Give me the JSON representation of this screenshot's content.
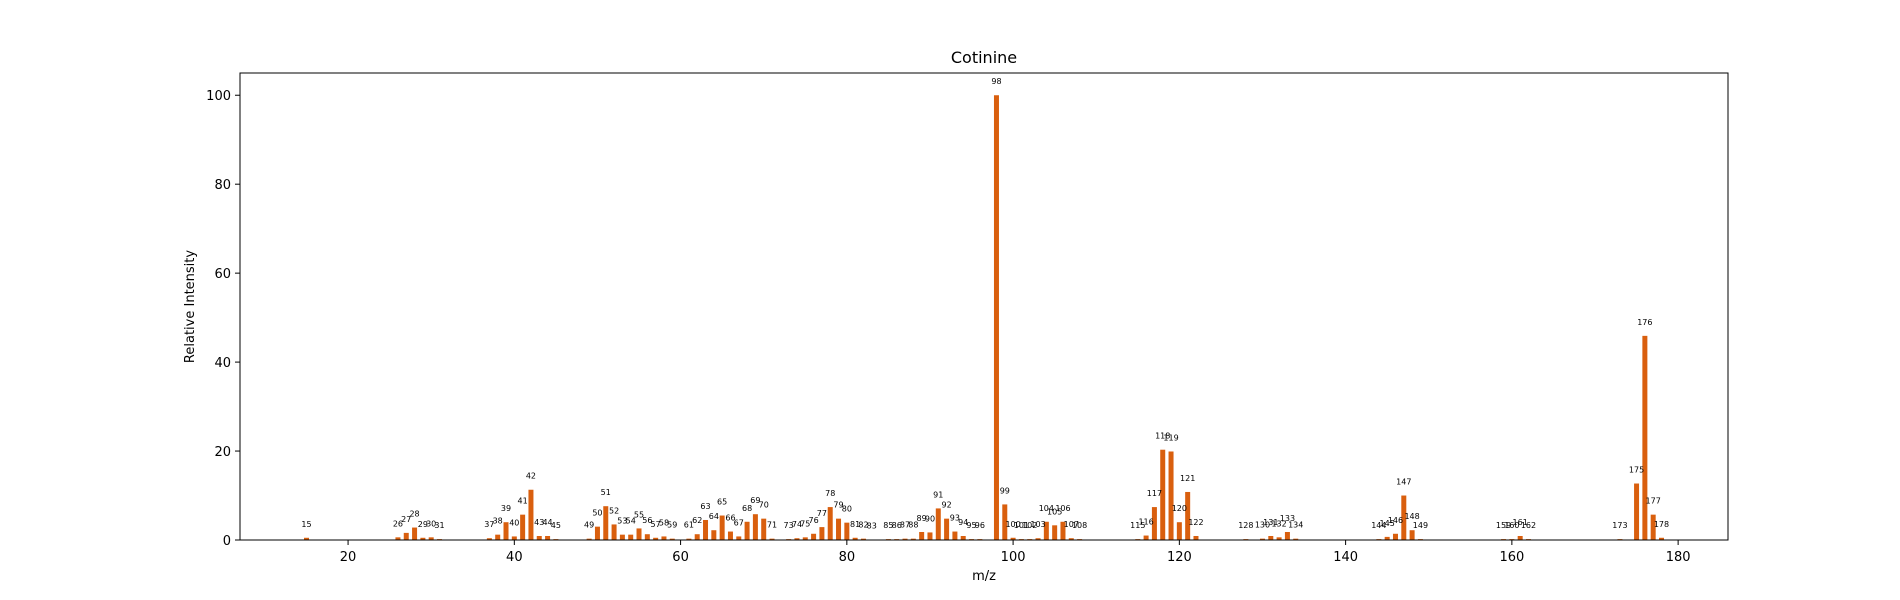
{
  "chart_data": {
    "type": "bar",
    "title": "Cotinine",
    "xlabel": "m/z",
    "ylabel": "Relative Intensity",
    "xlim": [
      7,
      186
    ],
    "ylim": [
      0,
      105
    ],
    "xticks": [
      20,
      40,
      60,
      80,
      100,
      120,
      140,
      160,
      180
    ],
    "yticks": [
      0,
      20,
      40,
      60,
      80,
      100
    ],
    "grid": false,
    "bar_color": "#d95f0e",
    "peaks": [
      {
        "mz": 15,
        "intensity": 0.5,
        "label": "15"
      },
      {
        "mz": 26,
        "intensity": 0.6,
        "label": "26"
      },
      {
        "mz": 27,
        "intensity": 1.6,
        "label": "27"
      },
      {
        "mz": 28,
        "intensity": 2.8,
        "label": "28"
      },
      {
        "mz": 29,
        "intensity": 0.5,
        "label": "29"
      },
      {
        "mz": 30,
        "intensity": 0.6,
        "label": "30"
      },
      {
        "mz": 31,
        "intensity": 0.2,
        "label": "31"
      },
      {
        "mz": 37,
        "intensity": 0.4,
        "label": "37"
      },
      {
        "mz": 38,
        "intensity": 1.2,
        "label": "38"
      },
      {
        "mz": 39,
        "intensity": 4.0,
        "label": "39"
      },
      {
        "mz": 40,
        "intensity": 0.8,
        "label": "40"
      },
      {
        "mz": 41,
        "intensity": 5.7,
        "label": "41"
      },
      {
        "mz": 42,
        "intensity": 11.3,
        "label": "42"
      },
      {
        "mz": 43,
        "intensity": 0.9,
        "label": "43"
      },
      {
        "mz": 44,
        "intensity": 0.9,
        "label": "44"
      },
      {
        "mz": 45,
        "intensity": 0.2,
        "label": "45"
      },
      {
        "mz": 49,
        "intensity": 0.3,
        "label": "49"
      },
      {
        "mz": 50,
        "intensity": 3.0,
        "label": "50"
      },
      {
        "mz": 51,
        "intensity": 7.6,
        "label": "51"
      },
      {
        "mz": 52,
        "intensity": 3.5,
        "label": "52"
      },
      {
        "mz": 53,
        "intensity": 1.2,
        "label": "53"
      },
      {
        "mz": 54,
        "intensity": 1.2,
        "label": "54"
      },
      {
        "mz": 55,
        "intensity": 2.6,
        "label": "55"
      },
      {
        "mz": 56,
        "intensity": 1.3,
        "label": "56"
      },
      {
        "mz": 57,
        "intensity": 0.5,
        "label": "57"
      },
      {
        "mz": 58,
        "intensity": 0.8,
        "label": "58"
      },
      {
        "mz": 59,
        "intensity": 0.3,
        "label": "59"
      },
      {
        "mz": 61,
        "intensity": 0.3,
        "label": "61"
      },
      {
        "mz": 62,
        "intensity": 1.3,
        "label": "62"
      },
      {
        "mz": 63,
        "intensity": 4.5,
        "label": "63"
      },
      {
        "mz": 64,
        "intensity": 2.2,
        "label": "64"
      },
      {
        "mz": 65,
        "intensity": 5.5,
        "label": "65"
      },
      {
        "mz": 66,
        "intensity": 1.9,
        "label": "66"
      },
      {
        "mz": 67,
        "intensity": 0.8,
        "label": "67"
      },
      {
        "mz": 68,
        "intensity": 4.1,
        "label": "68"
      },
      {
        "mz": 69,
        "intensity": 5.8,
        "label": "69"
      },
      {
        "mz": 70,
        "intensity": 4.8,
        "label": "70"
      },
      {
        "mz": 71,
        "intensity": 0.3,
        "label": "71"
      },
      {
        "mz": 73,
        "intensity": 0.2,
        "label": "73"
      },
      {
        "mz": 74,
        "intensity": 0.4,
        "label": "74"
      },
      {
        "mz": 75,
        "intensity": 0.6,
        "label": "75"
      },
      {
        "mz": 76,
        "intensity": 1.4,
        "label": "76"
      },
      {
        "mz": 77,
        "intensity": 2.9,
        "label": "77"
      },
      {
        "mz": 78,
        "intensity": 7.4,
        "label": "78"
      },
      {
        "mz": 79,
        "intensity": 4.8,
        "label": "79"
      },
      {
        "mz": 80,
        "intensity": 3.9,
        "label": "80"
      },
      {
        "mz": 81,
        "intensity": 0.5,
        "label": "81"
      },
      {
        "mz": 82,
        "intensity": 0.3,
        "label": "82"
      },
      {
        "mz": 83,
        "intensity": 0.1,
        "label": "83"
      },
      {
        "mz": 85,
        "intensity": 0.2,
        "label": "85"
      },
      {
        "mz": 86,
        "intensity": 0.2,
        "label": "86"
      },
      {
        "mz": 87,
        "intensity": 0.3,
        "label": "87"
      },
      {
        "mz": 88,
        "intensity": 0.3,
        "label": "88"
      },
      {
        "mz": 89,
        "intensity": 1.8,
        "label": "89"
      },
      {
        "mz": 90,
        "intensity": 1.7,
        "label": "90"
      },
      {
        "mz": 91,
        "intensity": 7.1,
        "label": "91"
      },
      {
        "mz": 92,
        "intensity": 4.8,
        "label": "92"
      },
      {
        "mz": 93,
        "intensity": 1.9,
        "label": "93"
      },
      {
        "mz": 94,
        "intensity": 0.9,
        "label": "94"
      },
      {
        "mz": 95,
        "intensity": 0.2,
        "label": "95"
      },
      {
        "mz": 96,
        "intensity": 0.2,
        "label": "96"
      },
      {
        "mz": 98,
        "intensity": 100.0,
        "label": "98"
      },
      {
        "mz": 99,
        "intensity": 8.0,
        "label": "99"
      },
      {
        "mz": 100,
        "intensity": 0.5,
        "label": "100"
      },
      {
        "mz": 101,
        "intensity": 0.2,
        "label": "101"
      },
      {
        "mz": 102,
        "intensity": 0.2,
        "label": "102"
      },
      {
        "mz": 103,
        "intensity": 0.4,
        "label": "103"
      },
      {
        "mz": 104,
        "intensity": 4.1,
        "label": "104"
      },
      {
        "mz": 105,
        "intensity": 3.3,
        "label": "105"
      },
      {
        "mz": 106,
        "intensity": 4.1,
        "label": "106"
      },
      {
        "mz": 107,
        "intensity": 0.4,
        "label": "107"
      },
      {
        "mz": 108,
        "intensity": 0.2,
        "label": "108"
      },
      {
        "mz": 115,
        "intensity": 0.2,
        "label": "115"
      },
      {
        "mz": 116,
        "intensity": 1.0,
        "label": "116"
      },
      {
        "mz": 117,
        "intensity": 7.4,
        "label": "117"
      },
      {
        "mz": 118,
        "intensity": 20.3,
        "label": "118"
      },
      {
        "mz": 119,
        "intensity": 19.9,
        "label": "119"
      },
      {
        "mz": 120,
        "intensity": 4.0,
        "label": "120"
      },
      {
        "mz": 121,
        "intensity": 10.8,
        "label": "121"
      },
      {
        "mz": 122,
        "intensity": 0.9,
        "label": "122"
      },
      {
        "mz": 128,
        "intensity": 0.2,
        "label": "128"
      },
      {
        "mz": 130,
        "intensity": 0.3,
        "label": "130"
      },
      {
        "mz": 131,
        "intensity": 0.9,
        "label": "131"
      },
      {
        "mz": 132,
        "intensity": 0.6,
        "label": "132"
      },
      {
        "mz": 133,
        "intensity": 1.8,
        "label": "133"
      },
      {
        "mz": 134,
        "intensity": 0.3,
        "label": "134"
      },
      {
        "mz": 144,
        "intensity": 0.2,
        "label": "144"
      },
      {
        "mz": 145,
        "intensity": 0.7,
        "label": "145"
      },
      {
        "mz": 146,
        "intensity": 1.4,
        "label": "146"
      },
      {
        "mz": 147,
        "intensity": 10.0,
        "label": "147"
      },
      {
        "mz": 148,
        "intensity": 2.2,
        "label": "148"
      },
      {
        "mz": 149,
        "intensity": 0.2,
        "label": "149"
      },
      {
        "mz": 159,
        "intensity": 0.2,
        "label": "159"
      },
      {
        "mz": 160,
        "intensity": 0.2,
        "label": "160"
      },
      {
        "mz": 161,
        "intensity": 0.9,
        "label": "161"
      },
      {
        "mz": 162,
        "intensity": 0.2,
        "label": "162"
      },
      {
        "mz": 173,
        "intensity": 0.2,
        "label": "173"
      },
      {
        "mz": 175,
        "intensity": 12.7,
        "label": "175"
      },
      {
        "mz": 176,
        "intensity": 45.9,
        "label": "176"
      },
      {
        "mz": 177,
        "intensity": 5.7,
        "label": "177"
      },
      {
        "mz": 178,
        "intensity": 0.5,
        "label": "178"
      }
    ]
  }
}
